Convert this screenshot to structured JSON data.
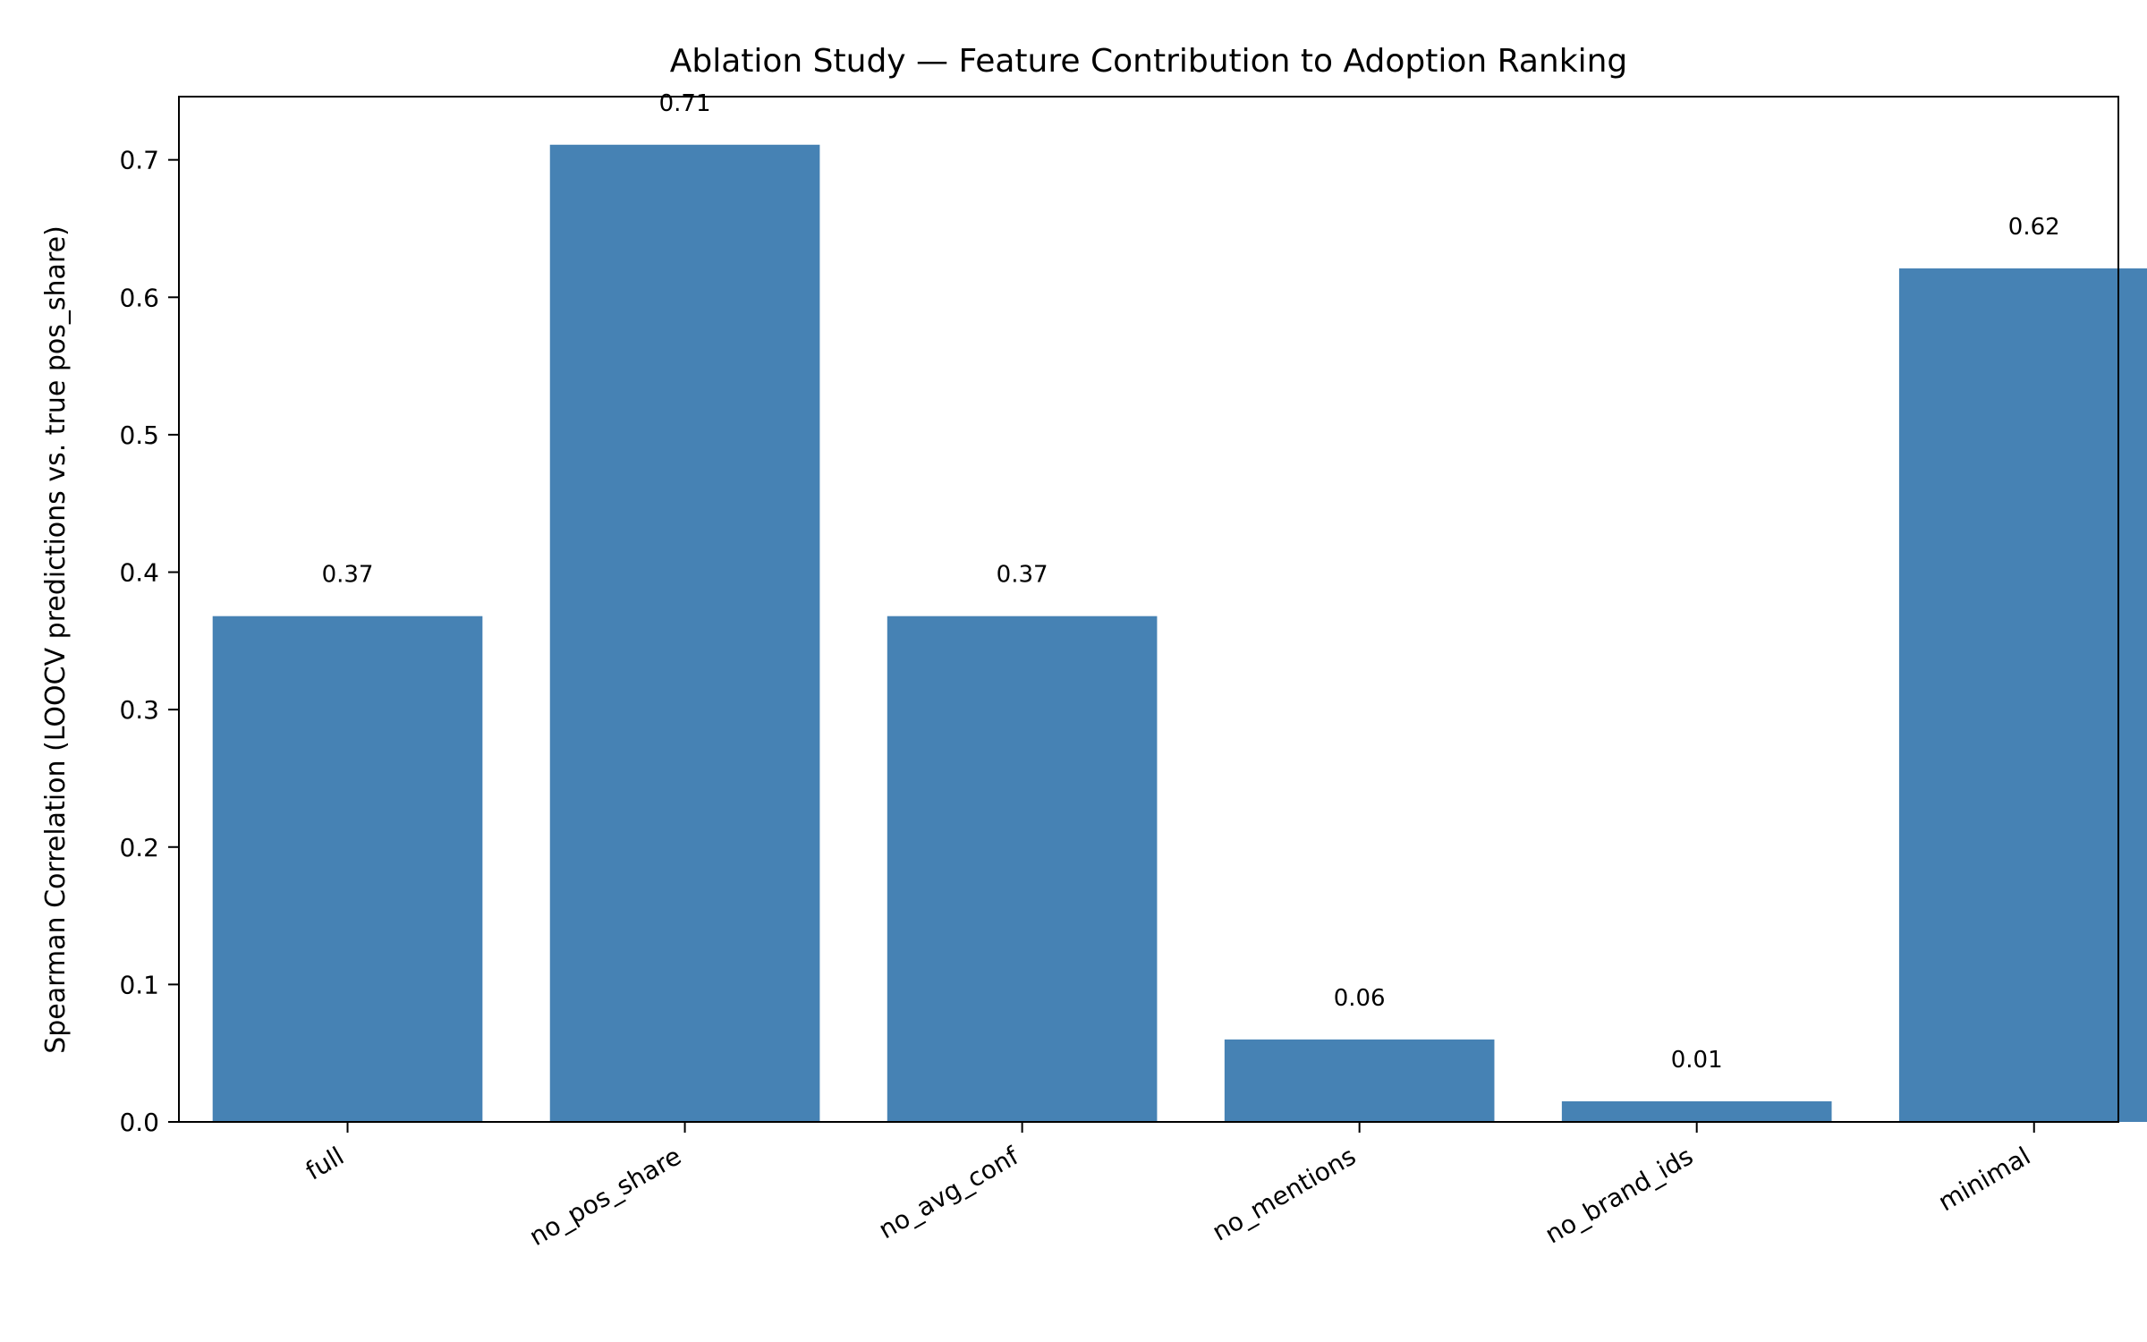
{
  "chart_data": {
    "type": "bar",
    "title": "Ablation Study — Feature Contribution to Adoption Ranking",
    "xlabel": "",
    "ylabel": "Spearman Correlation (LOOCV predictions vs. true pos_share)",
    "categories": [
      "full",
      "no_pos_share",
      "no_avg_conf",
      "no_mentions",
      "no_brand_ids",
      "minimal"
    ],
    "values": [
      0.368,
      0.711,
      0.368,
      0.06,
      0.015,
      0.621
    ],
    "data_labels": [
      "0.37",
      "0.71",
      "0.37",
      "0.06",
      "0.01",
      "0.62"
    ],
    "ylim": [
      0,
      0.746
    ],
    "yticks": [
      0,
      0.1,
      0.2,
      0.3,
      0.4,
      0.5,
      0.6,
      0.7
    ],
    "ytick_labels": [
      "0.0",
      "0.1",
      "0.2",
      "0.3",
      "0.4",
      "0.5",
      "0.6",
      "0.7"
    ],
    "bar_color": "#4682b4",
    "grid": false,
    "legend": "none"
  }
}
